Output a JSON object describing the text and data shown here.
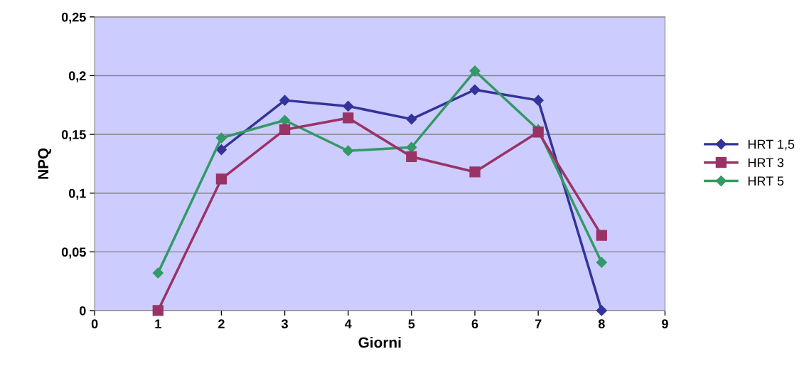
{
  "chart_data": {
    "type": "line",
    "xlabel": "Giorni",
    "ylabel": "NPQ",
    "xlim": [
      0,
      9
    ],
    "xticks": [
      0,
      1,
      2,
      3,
      4,
      5,
      6,
      7,
      8,
      9
    ],
    "ylim": [
      0,
      0.25
    ],
    "yticks": [
      0,
      {
        "value": 0.05,
        "label": "0,05"
      },
      {
        "value": 0.1,
        "label": "0,1"
      },
      {
        "value": 0.15,
        "label": "0,15"
      },
      {
        "value": 0.2,
        "label": "0,2"
      },
      {
        "value": 0.25,
        "label": "0,25"
      }
    ],
    "grid": "y",
    "legend": "right",
    "series": [
      {
        "name": "HRT 1,5",
        "color": "#333399",
        "marker": "diamond",
        "x": [
          2,
          3,
          4,
          5,
          6,
          7,
          8
        ],
        "values": [
          0.137,
          0.179,
          0.174,
          0.163,
          0.188,
          0.179,
          0
        ]
      },
      {
        "name": "HRT 3",
        "color": "#993366",
        "marker": "square",
        "x": [
          1,
          2,
          3,
          4,
          5,
          6,
          7,
          8
        ],
        "values": [
          0,
          0.112,
          0.154,
          0.164,
          0.131,
          0.118,
          0.152,
          0.064
        ]
      },
      {
        "name": "HRT 5",
        "color": "#339966",
        "marker": "diamond",
        "x": [
          1,
          2,
          3,
          4,
          5,
          6,
          7,
          8
        ],
        "values": [
          0.032,
          0.147,
          0.162,
          0.136,
          0.139,
          0.204,
          0.154,
          0.041
        ]
      }
    ]
  }
}
